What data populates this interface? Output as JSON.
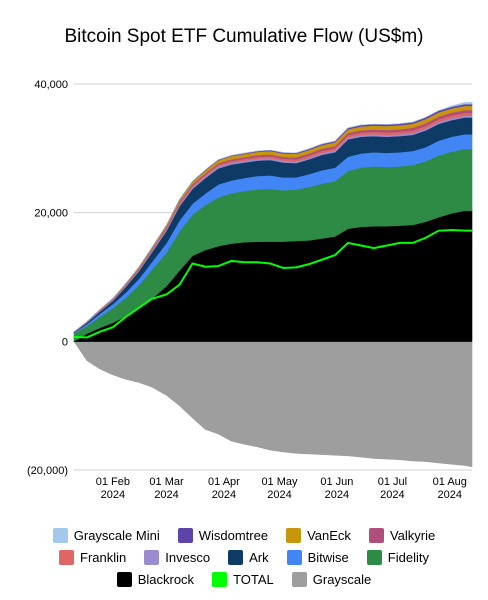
{
  "chart_data": {
    "type": "area",
    "title": "Bitcoin Spot ETF Cumulative Flow (US$m)",
    "xlabel": "",
    "ylabel": "",
    "ylim": [
      -20000,
      40000
    ],
    "y_ticks": [
      {
        "value": 40000,
        "label": "40,000"
      },
      {
        "value": 20000,
        "label": "20,000"
      },
      {
        "value": 0,
        "label": "0"
      },
      {
        "value": -20000,
        "label": "(20,000)"
      }
    ],
    "x_ticks": [
      {
        "date": "2024-02-01",
        "line1": "01 Feb",
        "line2": "2024"
      },
      {
        "date": "2024-03-01",
        "line1": "01 Mar",
        "line2": "2024"
      },
      {
        "date": "2024-04-01",
        "line1": "01 Apr",
        "line2": "2024"
      },
      {
        "date": "2024-05-01",
        "line1": "01 May",
        "line2": "2024"
      },
      {
        "date": "2024-06-01",
        "line1": "01 Jun",
        "line2": "2024"
      },
      {
        "date": "2024-07-01",
        "line1": "01 Jul",
        "line2": "2024"
      },
      {
        "date": "2024-08-01",
        "line1": "01 Aug",
        "line2": "2024"
      }
    ],
    "xlim": [
      "2024-01-11",
      "2024-08-13"
    ],
    "x": [
      "2024-01-11",
      "2024-01-18",
      "2024-01-25",
      "2024-02-01",
      "2024-02-08",
      "2024-02-15",
      "2024-02-22",
      "2024-03-01",
      "2024-03-08",
      "2024-03-15",
      "2024-03-22",
      "2024-03-29",
      "2024-04-05",
      "2024-04-12",
      "2024-04-19",
      "2024-04-26",
      "2024-05-03",
      "2024-05-10",
      "2024-05-17",
      "2024-05-24",
      "2024-05-31",
      "2024-06-07",
      "2024-06-14",
      "2024-06-21",
      "2024-06-28",
      "2024-07-05",
      "2024-07-12",
      "2024-07-19",
      "2024-07-26",
      "2024-08-02",
      "2024-08-09",
      "2024-08-13"
    ],
    "stacked_positive_order": [
      "Blackrock",
      "Fidelity",
      "Bitwise",
      "Ark",
      "Invesco",
      "Franklin",
      "Valkyrie",
      "VanEck",
      "Wisdomtree",
      "Grayscale Mini"
    ],
    "series": [
      {
        "name": "Blackrock",
        "color": "#000000",
        "values": [
          0,
          1200,
          2100,
          2900,
          3900,
          5300,
          6600,
          8600,
          11000,
          13300,
          14200,
          14800,
          15200,
          15400,
          15500,
          15500,
          15500,
          15600,
          15700,
          16000,
          16300,
          17500,
          17800,
          17900,
          17900,
          18000,
          18100,
          18600,
          19300,
          19900,
          20300,
          20300
        ]
      },
      {
        "name": "Fidelity",
        "color": "#2e8b45",
        "values": [
          1200,
          1200,
          1700,
          2300,
          2900,
          3400,
          4500,
          5200,
          6100,
          6400,
          7000,
          7600,
          7800,
          8000,
          8100,
          8200,
          8000,
          8000,
          8300,
          8500,
          8600,
          9000,
          9200,
          9300,
          9200,
          9200,
          9300,
          9400,
          9600,
          9600,
          9600,
          9600
        ]
      },
      {
        "name": "Bitwise",
        "color": "#4285f4",
        "values": [
          120,
          300,
          500,
          600,
          800,
          1000,
          1200,
          1500,
          1700,
          1700,
          1800,
          2000,
          2000,
          2000,
          2100,
          2100,
          2000,
          1900,
          2000,
          2100,
          2100,
          2200,
          2200,
          2200,
          2200,
          2200,
          2200,
          2200,
          2300,
          2300,
          2300,
          2300
        ]
      },
      {
        "name": "Ark",
        "color": "#0d3b66",
        "values": [
          80,
          200,
          350,
          500,
          900,
          1200,
          1500,
          1900,
          2200,
          2300,
          2400,
          2500,
          2500,
          2400,
          2400,
          2400,
          2300,
          2200,
          2300,
          2400,
          2400,
          2700,
          2600,
          2500,
          2500,
          2500,
          2500,
          2600,
          2600,
          2600,
          2600,
          2600
        ]
      },
      {
        "name": "Invesco",
        "color": "#9a8ccf",
        "values": [
          30,
          60,
          90,
          120,
          150,
          180,
          200,
          230,
          250,
          260,
          270,
          280,
          280,
          280,
          280,
          280,
          270,
          270,
          270,
          280,
          280,
          290,
          290,
          290,
          290,
          290,
          290,
          290,
          300,
          300,
          300,
          300
        ]
      },
      {
        "name": "Franklin",
        "color": "#e06666",
        "values": [
          20,
          40,
          60,
          80,
          100,
          120,
          150,
          180,
          210,
          230,
          240,
          250,
          260,
          270,
          280,
          290,
          300,
          310,
          320,
          330,
          340,
          350,
          360,
          370,
          380,
          390,
          400,
          410,
          420,
          420,
          420,
          420
        ]
      },
      {
        "name": "Valkyrie",
        "color": "#b04f7a",
        "values": [
          20,
          40,
          60,
          80,
          110,
          140,
          170,
          200,
          220,
          240,
          250,
          260,
          270,
          280,
          290,
          300,
          310,
          320,
          330,
          340,
          350,
          360,
          370,
          380,
          390,
          400,
          410,
          420,
          430,
          430,
          430,
          430
        ]
      },
      {
        "name": "VanEck",
        "color": "#c8960c",
        "values": [
          10,
          30,
          60,
          90,
          120,
          160,
          200,
          250,
          320,
          380,
          420,
          460,
          480,
          500,
          510,
          520,
          530,
          540,
          550,
          560,
          570,
          580,
          590,
          600,
          610,
          620,
          630,
          640,
          650,
          660,
          660,
          660
        ]
      },
      {
        "name": "Wisdomtree",
        "color": "#5e44a8",
        "values": [
          5,
          10,
          15,
          20,
          25,
          30,
          40,
          50,
          60,
          70,
          80,
          90,
          100,
          110,
          120,
          130,
          140,
          150,
          160,
          170,
          180,
          190,
          200,
          210,
          220,
          230,
          240,
          250,
          260,
          260,
          260,
          260
        ]
      },
      {
        "name": "Grayscale Mini",
        "color": "#a4c8ec",
        "values": [
          0,
          0,
          0,
          0,
          0,
          0,
          0,
          0,
          0,
          0,
          0,
          0,
          0,
          0,
          0,
          0,
          0,
          0,
          0,
          0,
          0,
          0,
          0,
          0,
          0,
          0,
          0,
          0,
          0,
          150,
          250,
          300
        ]
      },
      {
        "name": "Grayscale",
        "color": "#9e9e9e",
        "values": [
          0,
          -3000,
          -4300,
          -5200,
          -5900,
          -6400,
          -7100,
          -8400,
          -10000,
          -11900,
          -13700,
          -14400,
          -15500,
          -16000,
          -16400,
          -16900,
          -17200,
          -17400,
          -17500,
          -17600,
          -17700,
          -17800,
          -18000,
          -18200,
          -18300,
          -18400,
          -18600,
          -18700,
          -18900,
          -19100,
          -19300,
          -19500
        ]
      },
      {
        "name": "TOTAL",
        "color": "#00ff00",
        "values": [
          700,
          600,
          1500,
          2200,
          3800,
          5200,
          6600,
          7300,
          8800,
          12100,
          11600,
          11700,
          12500,
          12300,
          12300,
          12100,
          11400,
          11500,
          12000,
          12700,
          13400,
          15300,
          14900,
          14500,
          14900,
          15300,
          15300,
          16100,
          17200,
          17300,
          17200,
          17200
        ]
      }
    ],
    "legend_rows": [
      [
        "Grayscale Mini",
        "Wisdomtree",
        "VanEck",
        "Valkyrie"
      ],
      [
        "Franklin",
        "Invesco",
        "Ark",
        "Bitwise",
        "Fidelity"
      ],
      [
        "Blackrock",
        "TOTAL",
        "Grayscale"
      ]
    ],
    "grid": "horizontal",
    "legend_position": "bottom"
  }
}
